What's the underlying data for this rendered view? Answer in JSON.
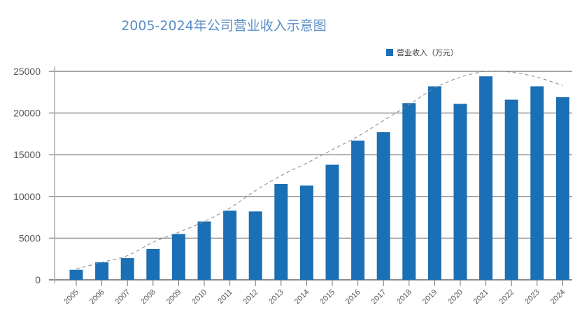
{
  "chart_data": {
    "type": "bar",
    "title": "2005-2024年公司营业收入示意图",
    "xlabel": "",
    "ylabel": "",
    "ylim": [
      0,
      25000
    ],
    "yticks": [
      0,
      5000,
      10000,
      15000,
      20000,
      25000
    ],
    "grid": true,
    "legend_position": "top-right",
    "categories": [
      "2005",
      "2006",
      "2007",
      "2008",
      "2009",
      "2010",
      "2011",
      "2012",
      "2013",
      "2014",
      "2015",
      "2016",
      "2017",
      "2018",
      "2019",
      "2020",
      "2021",
      "2022",
      "2023",
      "2024"
    ],
    "series": [
      {
        "name": "营业收入（万元）",
        "color": "#1b6fb5",
        "values": [
          1200,
          2100,
          2600,
          3700,
          5500,
          7000,
          8300,
          8200,
          11500,
          11300,
          13800,
          16700,
          17700,
          21200,
          23200,
          21100,
          24400,
          21600,
          23200,
          21900
        ]
      }
    ],
    "trendline": {
      "style": "dashed",
      "color": "#888888",
      "values": [
        1300,
        2100,
        2900,
        4500,
        5700,
        7000,
        8600,
        10700,
        12500,
        14000,
        15600,
        17200,
        19100,
        21000,
        23000,
        24300,
        25000,
        24900,
        24300,
        23300
      ]
    }
  }
}
